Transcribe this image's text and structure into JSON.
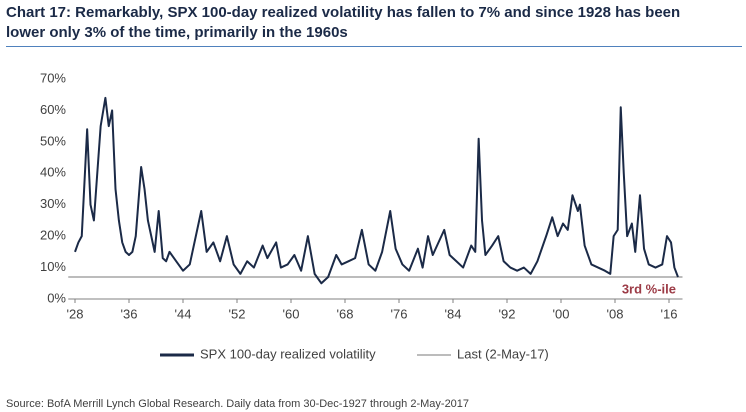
{
  "chart_data": {
    "type": "line",
    "title": "Chart 17: Remarkably, SPX 100-day realized volatility has fallen to 7% and since 1928 has been lower only 3% of the time, primarily in the 1960s",
    "source": "Source: BofA Merrill Lynch Global Research. Daily data from 30-Dec-1927 through 2-May-2017",
    "x": [
      1928,
      1928.5,
      1929,
      1929.8,
      1930.3,
      1930.8,
      1931.3,
      1931.8,
      1932.5,
      1933,
      1933.5,
      1934,
      1934.5,
      1935,
      1935.5,
      1936,
      1936.5,
      1937,
      1937.8,
      1938.3,
      1938.8,
      1939.3,
      1939.8,
      1940.4,
      1941,
      1941.5,
      1942,
      1943,
      1944,
      1945,
      1946.7,
      1947.5,
      1948.5,
      1949.5,
      1950.5,
      1951.5,
      1952.5,
      1953.5,
      1954.5,
      1955.8,
      1956.5,
      1957.8,
      1958.5,
      1959.5,
      1960.5,
      1961.5,
      1962.5,
      1963.5,
      1964.5,
      1965.5,
      1966.7,
      1967.5,
      1968.5,
      1969.5,
      1970.5,
      1971.5,
      1972.5,
      1973.5,
      1974.7,
      1975.5,
      1976.5,
      1977.5,
      1978.8,
      1979.5,
      1980.3,
      1981,
      1982.7,
      1983.5,
      1984.5,
      1985.5,
      1986.7,
      1987.3,
      1987.8,
      1988.3,
      1988.8,
      1989.8,
      1990.7,
      1991.5,
      1992.5,
      1993.5,
      1994.5,
      1995.5,
      1996.5,
      1997.8,
      1998.7,
      1999.5,
      2000.3,
      2001,
      2001.7,
      2002.5,
      2002.8,
      2003.5,
      2004.5,
      2005.5,
      2006.5,
      2007.3,
      2007.8,
      2008.4,
      2008.85,
      2009.3,
      2009.8,
      2010.5,
      2011,
      2011.7,
      2012.3,
      2013,
      2014,
      2015,
      2015.7,
      2016.3,
      2016.8,
      2017.33
    ],
    "series": [
      {
        "name": "SPX 100-day realized volatility",
        "color": "#1b2a47",
        "values": [
          15,
          18,
          20,
          54,
          30,
          25,
          40,
          55,
          64,
          55,
          60,
          35,
          25,
          18,
          15,
          14,
          15,
          20,
          42,
          35,
          25,
          20,
          15,
          28,
          13,
          12,
          15,
          12,
          9,
          11,
          28,
          15,
          18,
          12,
          20,
          11,
          8,
          12,
          10,
          17,
          13,
          18,
          10,
          11,
          14,
          9,
          20,
          8,
          5,
          7,
          14,
          11,
          12,
          13,
          22,
          11,
          9,
          15,
          28,
          16,
          11,
          9,
          16,
          10,
          20,
          14,
          22,
          14,
          12,
          10,
          17,
          15,
          51,
          25,
          14,
          17,
          20,
          12,
          10,
          9,
          10,
          8,
          12,
          20,
          26,
          20,
          24,
          22,
          33,
          28,
          30,
          17,
          11,
          10,
          9,
          8,
          20,
          22,
          61,
          40,
          20,
          24,
          15,
          33,
          16,
          11,
          10,
          11,
          20,
          18,
          10,
          7
        ]
      }
    ],
    "reference_lines": [
      {
        "name": "Last (2-May-17)",
        "value": 7,
        "color": "#a6a6a6"
      }
    ],
    "annotation": "3rd %-ile",
    "xlim": [
      1927,
      2018
    ],
    "ylim": [
      0,
      70
    ],
    "xticks": [
      {
        "value": 1928,
        "label": "'28"
      },
      {
        "value": 1936,
        "label": "'36"
      },
      {
        "value": 1944,
        "label": "'44"
      },
      {
        "value": 1952,
        "label": "'52"
      },
      {
        "value": 1960,
        "label": "'60"
      },
      {
        "value": 1968,
        "label": "'68"
      },
      {
        "value": 1976,
        "label": "'76"
      },
      {
        "value": 1984,
        "label": "'84"
      },
      {
        "value": 1992,
        "label": "'92"
      },
      {
        "value": 2000,
        "label": "'00"
      },
      {
        "value": 2008,
        "label": "'08"
      },
      {
        "value": 2016,
        "label": "'16"
      }
    ],
    "yticks": [
      {
        "value": 0,
        "label": "0%"
      },
      {
        "value": 10,
        "label": "10%"
      },
      {
        "value": 20,
        "label": "20%"
      },
      {
        "value": 30,
        "label": "30%"
      },
      {
        "value": 40,
        "label": "40%"
      },
      {
        "value": 50,
        "label": "50%"
      },
      {
        "value": 60,
        "label": "60%"
      },
      {
        "value": 70,
        "label": "70%"
      }
    ],
    "grid": false
  }
}
